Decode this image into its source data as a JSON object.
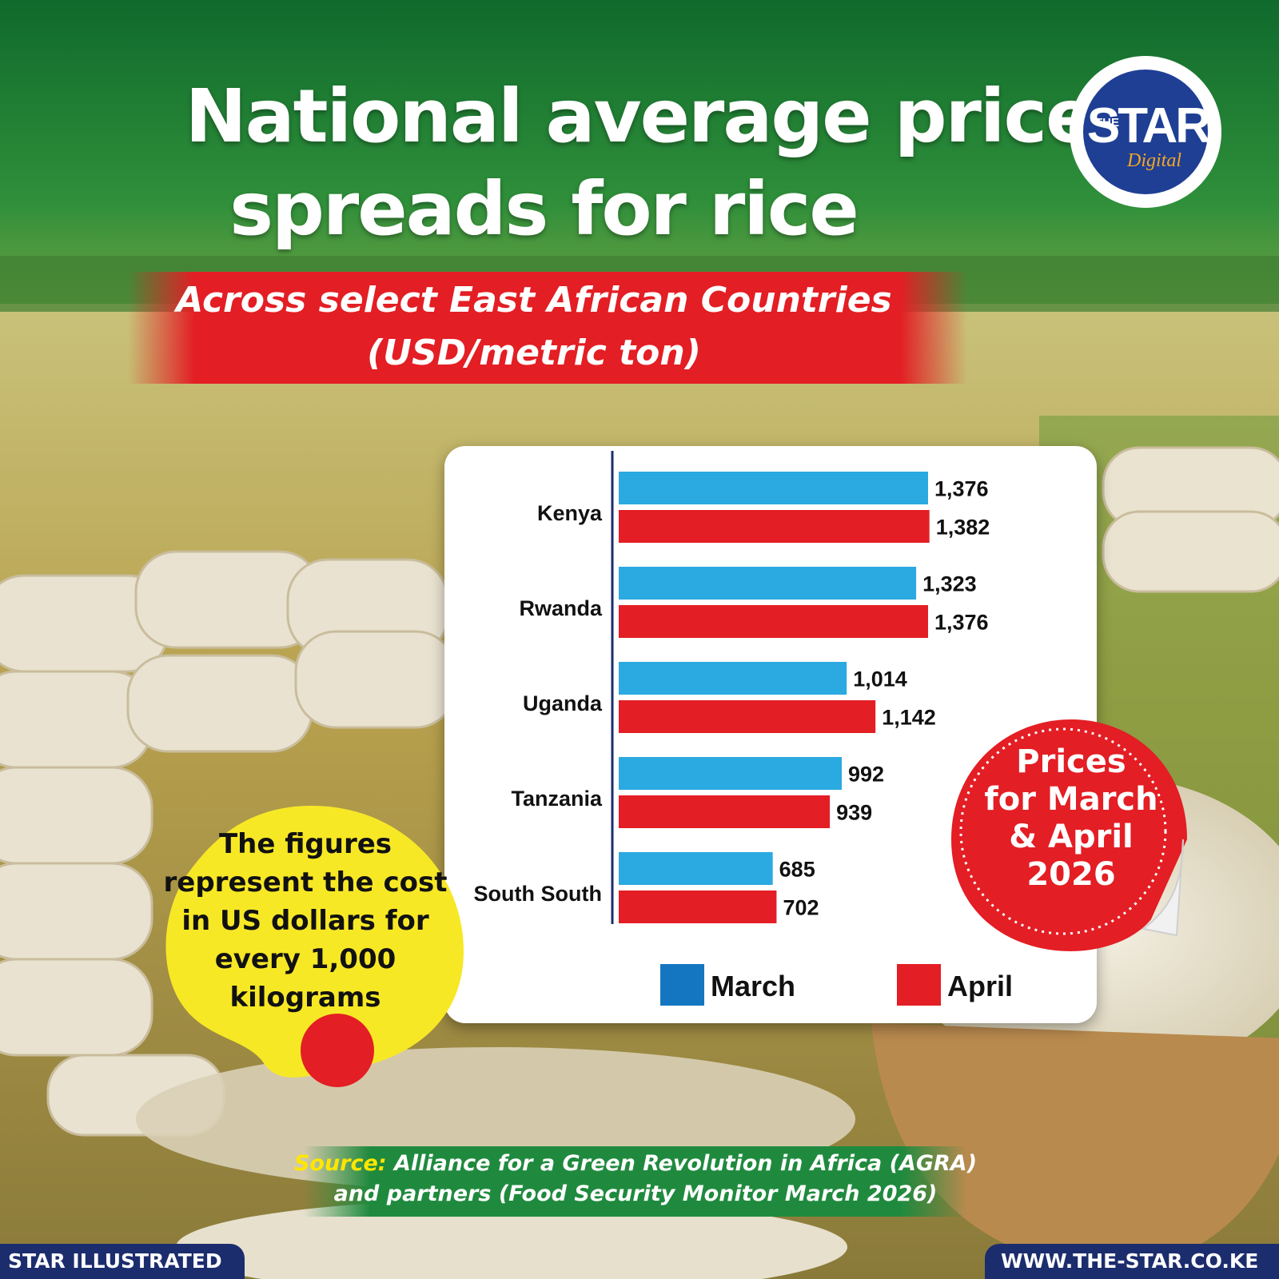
{
  "header": {
    "title_line1": "National average price",
    "title_line2": "spreads for rice",
    "subtitle_line1": "Across select East African Countries",
    "subtitle_line2": "(USD/metric ton)"
  },
  "logo": {
    "the": "THE",
    "star": "STAR",
    "digital": "Digital"
  },
  "note": {
    "lines": [
      "The figures",
      "represent the cost",
      "in US dollars for",
      "every 1,000",
      "kilograms"
    ]
  },
  "badge": {
    "lines": [
      "Prices",
      "for March",
      "& April",
      "2026"
    ]
  },
  "source": {
    "label": "Source:",
    "line1": "Alliance for a Green Revolution in Africa (AGRA)",
    "line2": "and partners (Food Security Monitor March 2026)"
  },
  "footer": {
    "left": "STAR ILLUSTRATED",
    "right": "WWW.THE-STAR.CO.KE"
  },
  "colors": {
    "march": "#2ba9e1",
    "april": "#e31e24",
    "legend_march": "#1476c1",
    "navy": "#1c2d6e",
    "green": "#1f8a3e",
    "yellow": "#f7e826"
  },
  "chart_data": {
    "type": "bar",
    "orientation": "horizontal",
    "categories": [
      "Kenya",
      "Rwanda",
      "Uganda",
      "Tanzania",
      "South South"
    ],
    "series": [
      {
        "name": "March",
        "values": [
          1376,
          1323,
          1014,
          992,
          685
        ],
        "labels": [
          "1,376",
          "1,323",
          "1,014",
          "992",
          "685"
        ]
      },
      {
        "name": "April",
        "values": [
          1382,
          1376,
          1142,
          939,
          702
        ],
        "labels": [
          "1,382",
          "1,376",
          "1,142",
          "939",
          "702"
        ]
      }
    ],
    "xlim": [
      0,
      1600
    ],
    "grid": false,
    "legend": "bottom"
  }
}
